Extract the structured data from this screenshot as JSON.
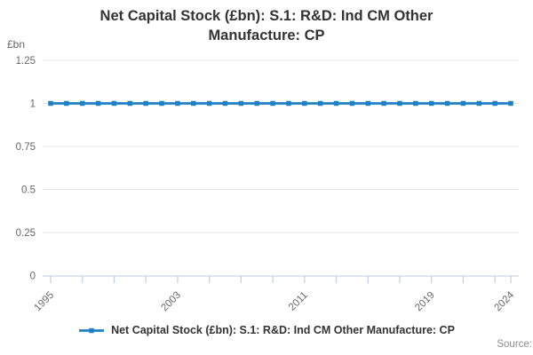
{
  "chart_data": {
    "type": "line",
    "title": "Net Capital Stock (£bn): S.1: R&D: Ind CM Other Manufacture: CP",
    "unit_label": "£bn",
    "xlabel": "",
    "ylabel": "£bn",
    "x": [
      1995,
      1996,
      1997,
      1998,
      1999,
      2000,
      2001,
      2002,
      2003,
      2004,
      2005,
      2006,
      2007,
      2008,
      2009,
      2010,
      2011,
      2012,
      2013,
      2014,
      2015,
      2016,
      2017,
      2018,
      2019,
      2020,
      2021,
      2022,
      2023,
      2024
    ],
    "series": [
      {
        "name": "Net Capital Stock (£bn): S.1: R&D: Ind CM Other Manufacture: CP",
        "color": "#1f80c4",
        "values": [
          1,
          1,
          1,
          1,
          1,
          1,
          1,
          1,
          1,
          1,
          1,
          1,
          1,
          1,
          1,
          1,
          1,
          1,
          1,
          1,
          1,
          1,
          1,
          1,
          1,
          1,
          1,
          1,
          1,
          1
        ]
      }
    ],
    "ylim": [
      0,
      1.25
    ],
    "yticks": [
      0,
      0.25,
      0.5,
      0.75,
      1,
      1.25
    ],
    "xtick_step_years": 2,
    "xtick_labels": [
      "1995",
      "2003",
      "2011",
      "2019",
      "2024"
    ],
    "grid": true,
    "legend_position": "bottom",
    "styles": {
      "grid_color": "#e6e6e6",
      "axis_line_color": "#ccd5e2",
      "tick_color": "#c3cfe3",
      "tick_label_color": "#666666",
      "title_color": "#333333",
      "legend_text_color": "#333333",
      "source_color": "#8c8c8c"
    }
  },
  "footer": {
    "source_label": "Source:"
  }
}
